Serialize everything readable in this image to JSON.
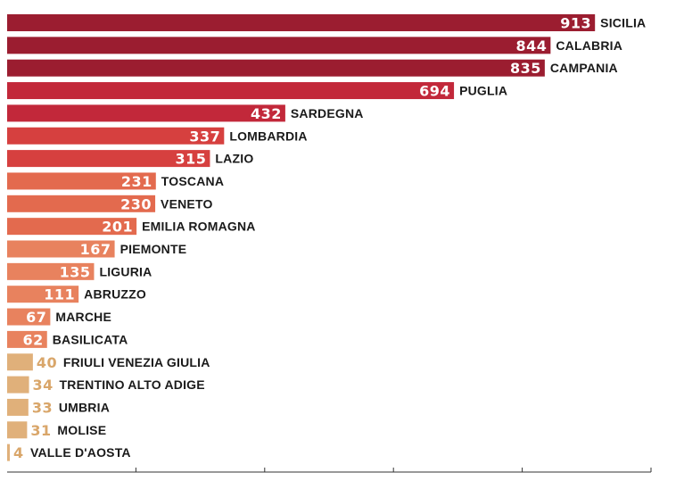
{
  "chart_data": {
    "type": "bar",
    "orientation": "horizontal",
    "title": "",
    "xlabel": "",
    "ylabel": "",
    "xlim": [
      0,
      1000
    ],
    "grid": false,
    "legend": "none",
    "categories": [
      "SICILIA",
      "CALABRIA",
      "CAMPANIA",
      "PUGLIA",
      "SARDEGNA",
      "LOMBARDIA",
      "LAZIO",
      "TOSCANA",
      "VENETO",
      "EMILIA ROMAGNA",
      "PIEMONTE",
      "LIGURIA",
      "ABRUZZO",
      "MARCHE",
      "BASILICATA",
      "FRIULI VENEZIA GIULIA",
      "TRENTINO ALTO ADIGE",
      "UMBRIA",
      "MOLISE",
      "VALLE D'AOSTA"
    ],
    "values": [
      913,
      844,
      835,
      694,
      432,
      337,
      315,
      231,
      230,
      201,
      167,
      135,
      111,
      67,
      62,
      40,
      34,
      33,
      31,
      4
    ],
    "bar_colors": [
      "#9b1d30",
      "#9b1d30",
      "#9b1d30",
      "#c2283a",
      "#c2283a",
      "#d6403f",
      "#d6403f",
      "#e36a4e",
      "#e36a4e",
      "#e36a4e",
      "#e8825e",
      "#e8825e",
      "#e8825e",
      "#e8825e",
      "#e8825e",
      "#e0b07a",
      "#e0b07a",
      "#e0b07a",
      "#e0b07a",
      "#e0b07a"
    ],
    "colors": {
      "axis": "#333333",
      "label_text": "#1a1a1a",
      "value_text_dark_bar": "#ffffff",
      "value_text_light_bar": "#d9a66a"
    }
  }
}
